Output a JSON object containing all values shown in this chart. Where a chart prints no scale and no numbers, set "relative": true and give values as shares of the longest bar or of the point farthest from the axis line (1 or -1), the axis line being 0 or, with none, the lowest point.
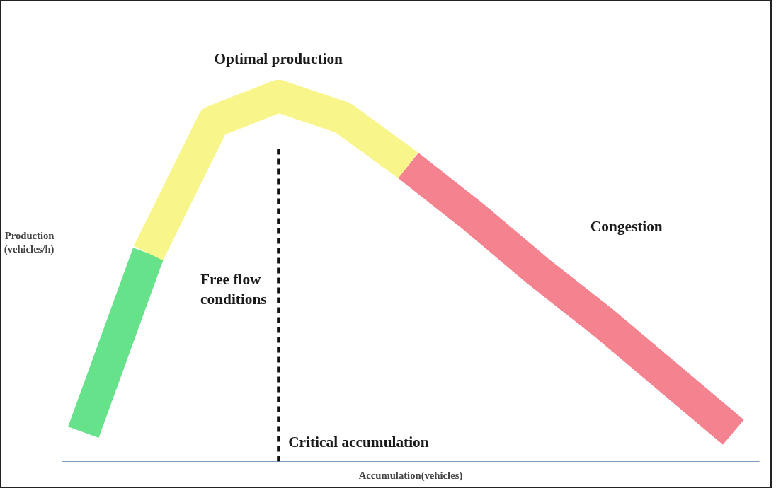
{
  "chart_data": {
    "type": "line",
    "relative": true,
    "xlabel": "Accumulation(vehicles)",
    "ylabel": "Production (vehicles/h)",
    "categories": [
      null,
      null,
      null,
      null,
      null,
      null,
      null,
      null,
      null,
      null,
      null
    ],
    "series": [
      {
        "color": "#66e28a",
        "values": [
          0.08,
          0.57,
          null,
          null,
          null,
          null,
          null,
          null,
          null,
          null,
          null
        ]
      },
      {
        "color": "#f8f58a",
        "values": [
          null,
          0.57,
          0.93,
          1,
          0.94,
          0.81,
          null,
          null,
          null,
          null,
          null
        ]
      },
      {
        "color": "#f4828f",
        "values": [
          null,
          null,
          null,
          null,
          null,
          0.81,
          0.67,
          0.52,
          0.38,
          0.23,
          0.08
        ]
      }
    ],
    "annotations": [
      "Optimal production",
      "Free flow conditions",
      "Congestion",
      "Critical accumulation"
    ],
    "tick_labels": false,
    "grid": false,
    "marker": "none",
    "line_style": "solid"
  }
}
